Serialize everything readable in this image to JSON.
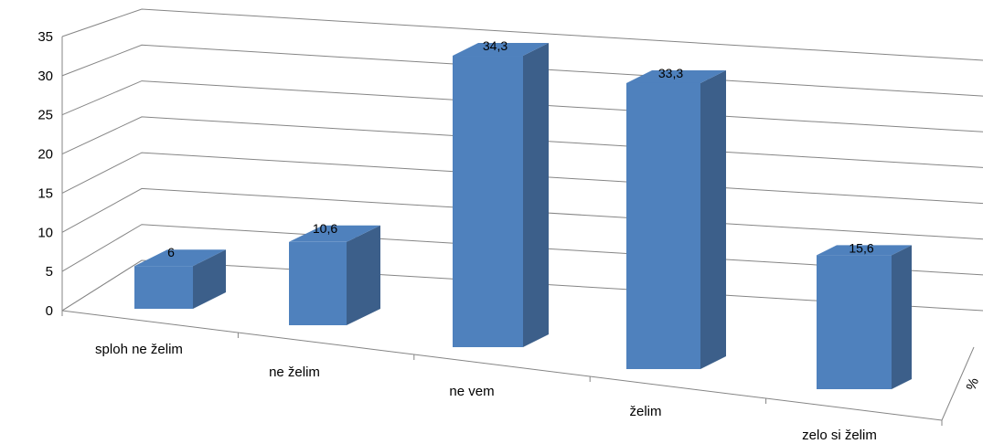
{
  "chart_data": {
    "type": "bar",
    "variant": "3d-column",
    "title": "",
    "xlabel": "",
    "ylabel": "",
    "categories": [
      "sploh ne želim",
      "ne želim",
      "ne vem",
      "želim",
      "zelo si želim"
    ],
    "series": [
      {
        "values": [
          6,
          10.6,
          34.3,
          33.3,
          15.6
        ]
      }
    ],
    "data_labels": [
      "6",
      "10,6",
      "34,3",
      "33,3",
      "15,6"
    ],
    "y_ticks": [
      "0",
      "5",
      "10",
      "15",
      "20",
      "25",
      "30",
      "35"
    ],
    "ylim": [
      0,
      35
    ],
    "depth_axis_label": "%",
    "grid": true,
    "legend": "none",
    "colors": {
      "bar_front": "#4f81bd",
      "bar_top": "#4f81bd",
      "bar_side": "#3c5f8a",
      "grid": "#858585"
    }
  }
}
